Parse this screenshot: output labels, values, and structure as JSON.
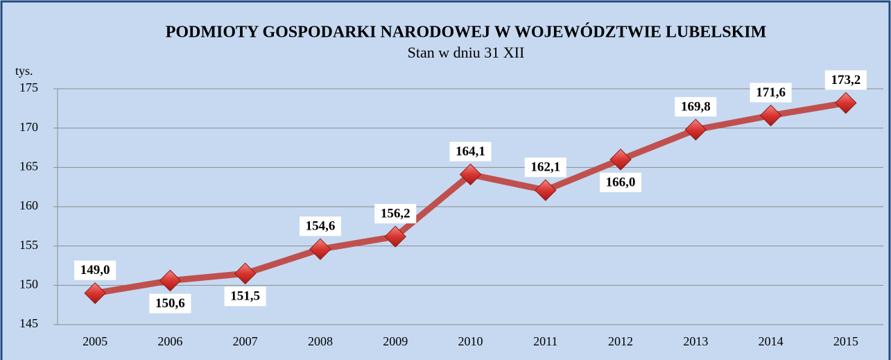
{
  "chart_data": {
    "type": "line",
    "title": "PODMIOTY GOSPODARKI NARODOWEJ W WOJEWÓDZTWIE  LUBELSKIM",
    "subtitle": "Stan w dniu 31 XII",
    "y_label": "tys.",
    "categories": [
      "2005",
      "2006",
      "2007",
      "2008",
      "2009",
      "2010",
      "2011",
      "2012",
      "2013",
      "2014",
      "2015"
    ],
    "values": [
      149.0,
      150.6,
      151.5,
      154.6,
      156.2,
      164.1,
      162.1,
      166.0,
      169.8,
      171.6,
      173.2
    ],
    "value_labels": [
      "149,0",
      "150,6",
      "151,5",
      "154,6",
      "156,2",
      "164,1",
      "162,1",
      "166,0",
      "169,8",
      "171,6",
      "173,2"
    ],
    "color": "#c0504d",
    "ylim": [
      145,
      175
    ],
    "yticks": [
      145,
      150,
      155,
      160,
      165,
      170,
      175
    ],
    "grid": true
  }
}
